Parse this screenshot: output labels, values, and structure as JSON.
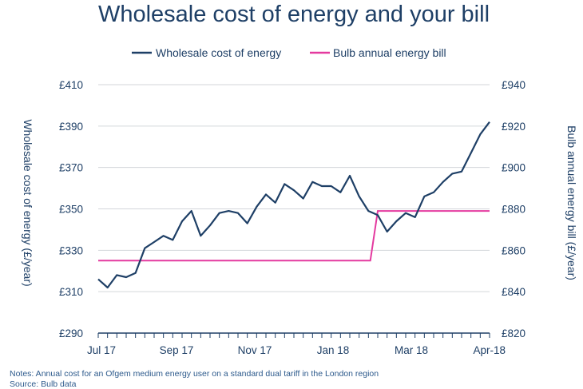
{
  "chart_data": {
    "type": "line",
    "title": "Wholesale cost of energy and your bill",
    "x_ticks": [
      "Jul 17",
      "Sep 17",
      "Nov 17",
      "Jan 18",
      "Mar 18",
      "Apr-18"
    ],
    "x_range": [
      0,
      42
    ],
    "y_left": {
      "label": "Wholesale cost of energy (£/year)",
      "lim": [
        290,
        410
      ],
      "ticks": [
        "£410",
        "£390",
        "£370",
        "£350",
        "£330",
        "£310",
        "£290"
      ]
    },
    "y_right": {
      "label": "Bulb annual energy bill (£/year)",
      "lim": [
        820,
        940
      ],
      "ticks": [
        "£940",
        "£920",
        "£900",
        "£880",
        "£860",
        "£840",
        "£820"
      ]
    },
    "legend_position": "top",
    "series": [
      {
        "name": "Wholesale cost of energy",
        "axis": "left",
        "color": "#1e3f66",
        "x": [
          0,
          1,
          2,
          3,
          4,
          5,
          6,
          7,
          8,
          9,
          10,
          11,
          12,
          13,
          14,
          15,
          16,
          17,
          18,
          19,
          20,
          21,
          22,
          23,
          24,
          25,
          26,
          27,
          28,
          29,
          30,
          31,
          32,
          33,
          34,
          35,
          36,
          37,
          38,
          39,
          40,
          41,
          42
        ],
        "y": [
          316,
          312,
          318,
          317,
          319,
          331,
          334,
          337,
          335,
          344,
          349,
          337,
          342,
          348,
          349,
          348,
          343,
          351,
          357,
          353,
          362,
          359,
          355,
          363,
          361,
          361,
          358,
          366,
          356,
          349,
          347,
          339,
          344,
          348,
          346,
          356,
          358,
          363,
          367,
          368,
          377,
          386,
          392
        ]
      },
      {
        "name": "Bulb annual energy bill",
        "axis": "right",
        "color": "#e43a9f",
        "x": [
          0,
          29.2,
          30,
          42
        ],
        "y": [
          855,
          855,
          879,
          879
        ]
      }
    ],
    "notes": [
      "Notes: Annual cost for an Ofgem medium energy user on a standard dual tariff in the London region",
      "Source: Bulb data"
    ]
  }
}
